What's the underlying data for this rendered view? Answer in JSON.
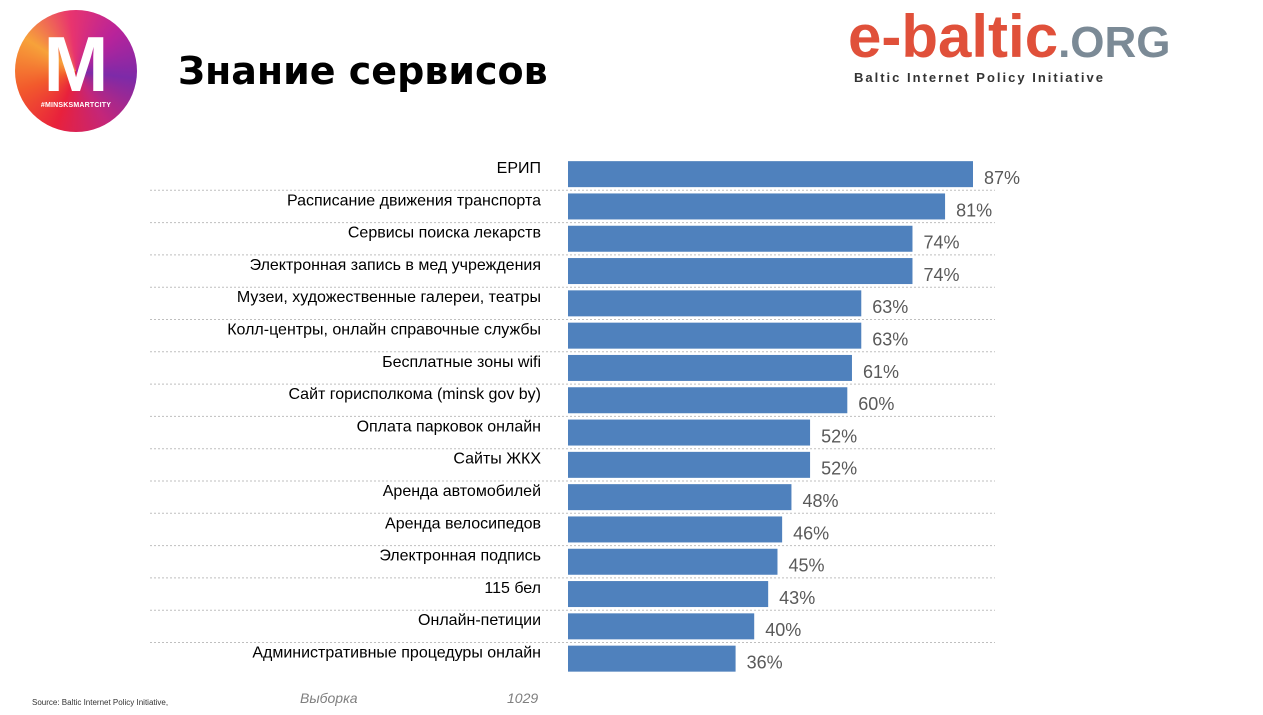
{
  "header": {
    "logo_mark": "M",
    "logo_tag": "#MINSKSMARTCITY",
    "title": "Знание сервисов",
    "brand_main": "e-baltic",
    "brand_suffix": ".ORG",
    "brand_sub": "Baltic Internet Policy Initiative"
  },
  "colors": {
    "bar": "#4f81bd",
    "gridline": "#bfbfbf",
    "value_label": "#595959",
    "brand_red": "#e0503a",
    "brand_grey": "#7b8a96"
  },
  "chart_data": {
    "type": "bar",
    "orientation": "horizontal",
    "categories": [
      "ЕРИП",
      "Расписание движения транспорта",
      "Сервисы поиска лекарств",
      "Электронная запись в мед учреждения",
      "Музеи, художественные галереи, театры",
      "Колл-центры, онлайн справочные службы",
      "Бесплатные зоны wifi",
      "Сайт горисполкома (minsk gov by)",
      "Оплата парковок  онлайн",
      "Сайты ЖКХ",
      "Аренда автомобилей",
      "Аренда велосипедов",
      "Электронная подпись",
      "115 бел",
      "Онлайн-петиции",
      "Административные процедуры онлайн"
    ],
    "values": [
      87,
      81,
      74,
      74,
      63,
      63,
      61,
      60,
      52,
      52,
      48,
      46,
      45,
      43,
      40,
      36
    ],
    "value_labels": [
      "87%",
      "81%",
      "74%",
      "74%",
      "63%",
      "63%",
      "61%",
      "60%",
      "52%",
      "52%",
      "48%",
      "46%",
      "45%",
      "43%",
      "40%",
      "36%"
    ],
    "xlim": [
      0,
      87
    ],
    "grid": "dotted horizontal separators"
  },
  "footer": {
    "source": "Source: Baltic Internet Policy Initiative,",
    "sample_label": "Выборка",
    "sample_value": "1029"
  }
}
